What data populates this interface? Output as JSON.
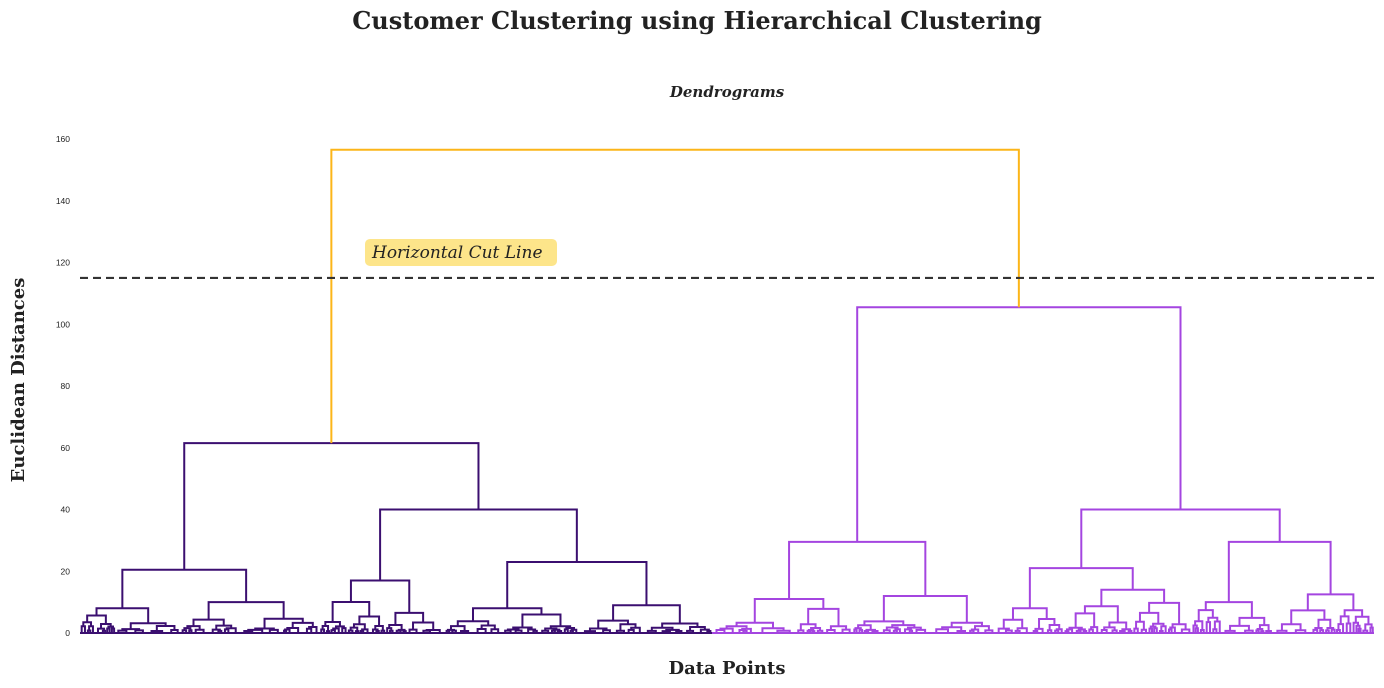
{
  "suptitle": "Customer Clustering using Hierarchical Clustering",
  "chart_data": {
    "type": "dendrogram",
    "title": "Dendrograms",
    "xlabel": "Data Points",
    "ylabel": "Euclidean Distances",
    "ylim": [
      0,
      160
    ],
    "yticks": [
      0,
      20,
      40,
      60,
      80,
      100,
      120,
      140,
      160
    ],
    "grid": false,
    "cut_line": {
      "y": 115,
      "label": "Horizontal Cut Line",
      "color": "#333333",
      "label_bg": "#fde58a"
    },
    "colors": {
      "cluster_1": "#3b0f70",
      "cluster_2": "#a445e0",
      "root": "#fcb519"
    },
    "root": {
      "height": 156.5,
      "color": "root"
    },
    "clusters": [
      {
        "name": "cluster_1",
        "merge_height": 61.5,
        "links": [
          {
            "h": 20.5,
            "c1": 0.3,
            "h1": 8.0,
            "c2": 0.7,
            "h2": 10.0
          },
          {
            "h": 40.0,
            "c1": 0.6,
            "h1": 17.0,
            "c2": 0.8,
            "h2": 23.0
          },
          {
            "h": 23.0,
            "c1": 0.55,
            "h1": 8.0,
            "c2": 0.85,
            "h2": 9.0
          }
        ]
      },
      {
        "name": "cluster_2",
        "merge_height": 105.5,
        "links": [
          {
            "h": 29.5,
            "c1": 0.3,
            "h1": 11.0,
            "c2": 0.7,
            "h2": 12.0
          },
          {
            "h": 40.0,
            "c1": 0.3,
            "h1": 21.0,
            "c2": 0.75,
            "h2": 29.5
          },
          {
            "h": 21.0,
            "c1": 0.3,
            "h1": 8.0,
            "c2": 0.65,
            "h2": 14.0
          },
          {
            "h": 29.5,
            "c1": 0.3,
            "h1": 10.0,
            "c2": 0.65,
            "h2": 12.5
          }
        ]
      }
    ]
  }
}
